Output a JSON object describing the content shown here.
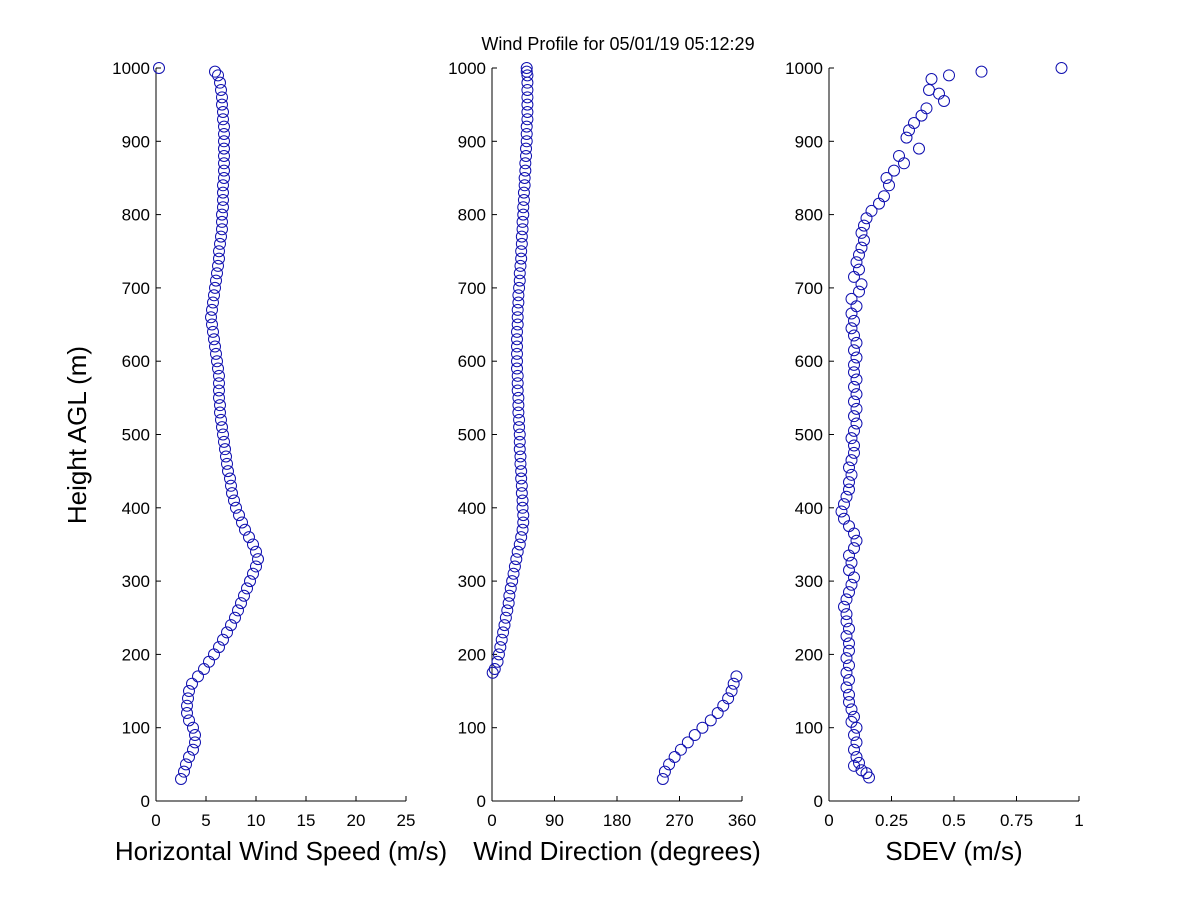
{
  "figure": {
    "title": "Wind Profile for  05/01/19 05:12:29",
    "ylabel": "Height AGL (m)"
  },
  "chart_data": [
    {
      "type": "scatter",
      "xlabel": "Horizontal Wind Speed (m/s)",
      "ylabel": "Height AGL (m)",
      "xlim": [
        0,
        25
      ],
      "ylim": [
        0,
        1000
      ],
      "xticks": [
        0,
        5,
        10,
        15,
        20,
        25
      ],
      "yticks": [
        0,
        100,
        200,
        300,
        400,
        500,
        600,
        700,
        800,
        900,
        1000
      ],
      "marker_color": "#1010b0",
      "grid": false,
      "points": [
        [
          0.3,
          1000
        ],
        [
          5.9,
          995
        ],
        [
          6.2,
          990
        ],
        [
          6.4,
          980
        ],
        [
          6.5,
          970
        ],
        [
          6.6,
          960
        ],
        [
          6.6,
          950
        ],
        [
          6.7,
          940
        ],
        [
          6.7,
          930
        ],
        [
          6.8,
          920
        ],
        [
          6.8,
          910
        ],
        [
          6.8,
          900
        ],
        [
          6.8,
          890
        ],
        [
          6.8,
          880
        ],
        [
          6.8,
          870
        ],
        [
          6.8,
          860
        ],
        [
          6.8,
          850
        ],
        [
          6.7,
          840
        ],
        [
          6.7,
          830
        ],
        [
          6.7,
          820
        ],
        [
          6.7,
          810
        ],
        [
          6.6,
          800
        ],
        [
          6.6,
          790
        ],
        [
          6.6,
          780
        ],
        [
          6.5,
          770
        ],
        [
          6.4,
          760
        ],
        [
          6.3,
          750
        ],
        [
          6.3,
          740
        ],
        [
          6.2,
          730
        ],
        [
          6.1,
          720
        ],
        [
          6.0,
          710
        ],
        [
          5.9,
          700
        ],
        [
          5.8,
          690
        ],
        [
          5.7,
          680
        ],
        [
          5.6,
          670
        ],
        [
          5.5,
          660
        ],
        [
          5.6,
          650
        ],
        [
          5.7,
          640
        ],
        [
          5.8,
          630
        ],
        [
          5.9,
          620
        ],
        [
          6.0,
          610
        ],
        [
          6.1,
          600
        ],
        [
          6.2,
          590
        ],
        [
          6.3,
          580
        ],
        [
          6.3,
          570
        ],
        [
          6.3,
          560
        ],
        [
          6.3,
          550
        ],
        [
          6.4,
          540
        ],
        [
          6.4,
          530
        ],
        [
          6.5,
          520
        ],
        [
          6.6,
          510
        ],
        [
          6.7,
          500
        ],
        [
          6.8,
          490
        ],
        [
          6.9,
          480
        ],
        [
          7.0,
          470
        ],
        [
          7.1,
          460
        ],
        [
          7.2,
          450
        ],
        [
          7.4,
          440
        ],
        [
          7.5,
          430
        ],
        [
          7.6,
          420
        ],
        [
          7.8,
          410
        ],
        [
          8.0,
          400
        ],
        [
          8.3,
          390
        ],
        [
          8.6,
          380
        ],
        [
          8.9,
          370
        ],
        [
          9.3,
          360
        ],
        [
          9.7,
          350
        ],
        [
          10.0,
          340
        ],
        [
          10.2,
          330
        ],
        [
          10.0,
          320
        ],
        [
          9.7,
          310
        ],
        [
          9.4,
          300
        ],
        [
          9.1,
          290
        ],
        [
          8.8,
          280
        ],
        [
          8.5,
          270
        ],
        [
          8.2,
          260
        ],
        [
          7.9,
          250
        ],
        [
          7.5,
          240
        ],
        [
          7.1,
          230
        ],
        [
          6.7,
          220
        ],
        [
          6.3,
          210
        ],
        [
          5.8,
          200
        ],
        [
          5.3,
          190
        ],
        [
          4.8,
          180
        ],
        [
          4.2,
          170
        ],
        [
          3.6,
          160
        ],
        [
          3.3,
          150
        ],
        [
          3.2,
          140
        ],
        [
          3.1,
          130
        ],
        [
          3.1,
          120
        ],
        [
          3.3,
          110
        ],
        [
          3.7,
          100
        ],
        [
          3.9,
          90
        ],
        [
          3.9,
          80
        ],
        [
          3.7,
          70
        ],
        [
          3.3,
          60
        ],
        [
          3.0,
          50
        ],
        [
          2.8,
          40
        ],
        [
          2.5,
          30
        ]
      ]
    },
    {
      "type": "scatter",
      "xlabel": "Wind Direction (degrees)",
      "xlim": [
        0,
        360
      ],
      "ylim": [
        0,
        1000
      ],
      "xticks": [
        0,
        90,
        180,
        270,
        360
      ],
      "yticks": [
        0,
        100,
        200,
        300,
        400,
        500,
        600,
        700,
        800,
        900,
        1000
      ],
      "marker_color": "#1010b0",
      "grid": false,
      "points": [
        [
          50,
          1000
        ],
        [
          50,
          995
        ],
        [
          51,
          990
        ],
        [
          51,
          980
        ],
        [
          51,
          970
        ],
        [
          51,
          960
        ],
        [
          51,
          950
        ],
        [
          51,
          940
        ],
        [
          51,
          930
        ],
        [
          50,
          920
        ],
        [
          50,
          910
        ],
        [
          50,
          900
        ],
        [
          49,
          890
        ],
        [
          49,
          880
        ],
        [
          48,
          870
        ],
        [
          48,
          860
        ],
        [
          47,
          850
        ],
        [
          47,
          840
        ],
        [
          46,
          830
        ],
        [
          46,
          820
        ],
        [
          45,
          810
        ],
        [
          45,
          800
        ],
        [
          44,
          790
        ],
        [
          44,
          780
        ],
        [
          43,
          770
        ],
        [
          43,
          760
        ],
        [
          42,
          750
        ],
        [
          42,
          740
        ],
        [
          41,
          730
        ],
        [
          40,
          720
        ],
        [
          40,
          710
        ],
        [
          39,
          700
        ],
        [
          38,
          690
        ],
        [
          38,
          680
        ],
        [
          37,
          670
        ],
        [
          37,
          660
        ],
        [
          37,
          650
        ],
        [
          36,
          640
        ],
        [
          36,
          630
        ],
        [
          36,
          620
        ],
        [
          36,
          610
        ],
        [
          36,
          600
        ],
        [
          36,
          590
        ],
        [
          37,
          580
        ],
        [
          37,
          570
        ],
        [
          37,
          560
        ],
        [
          38,
          550
        ],
        [
          38,
          540
        ],
        [
          38,
          530
        ],
        [
          39,
          520
        ],
        [
          39,
          510
        ],
        [
          40,
          500
        ],
        [
          40,
          490
        ],
        [
          40,
          480
        ],
        [
          41,
          470
        ],
        [
          41,
          460
        ],
        [
          42,
          450
        ],
        [
          42,
          440
        ],
        [
          43,
          430
        ],
        [
          43,
          420
        ],
        [
          44,
          410
        ],
        [
          44,
          400
        ],
        [
          45,
          390
        ],
        [
          45,
          380
        ],
        [
          44,
          370
        ],
        [
          42,
          360
        ],
        [
          40,
          350
        ],
        [
          37,
          340
        ],
        [
          35,
          330
        ],
        [
          33,
          320
        ],
        [
          31,
          310
        ],
        [
          29,
          300
        ],
        [
          27,
          290
        ],
        [
          25,
          280
        ],
        [
          24,
          270
        ],
        [
          22,
          260
        ],
        [
          20,
          250
        ],
        [
          18,
          240
        ],
        [
          16,
          230
        ],
        [
          14,
          220
        ],
        [
          12,
          210
        ],
        [
          10,
          200
        ],
        [
          8,
          190
        ],
        [
          4,
          180
        ],
        [
          1,
          175
        ],
        [
          352,
          170
        ],
        [
          348,
          160
        ],
        [
          345,
          150
        ],
        [
          340,
          140
        ],
        [
          333,
          130
        ],
        [
          325,
          120
        ],
        [
          315,
          110
        ],
        [
          303,
          100
        ],
        [
          292,
          90
        ],
        [
          282,
          80
        ],
        [
          272,
          70
        ],
        [
          263,
          60
        ],
        [
          255,
          50
        ],
        [
          249,
          40
        ],
        [
          246,
          30
        ]
      ]
    },
    {
      "type": "scatter",
      "xlabel": "SDEV  (m/s)",
      "xlim": [
        0,
        1
      ],
      "ylim": [
        0,
        1000
      ],
      "xticks": [
        0,
        0.25,
        0.5,
        0.75,
        1
      ],
      "xticklabels": [
        "0",
        "0.25",
        "0.5",
        "0.75",
        "1"
      ],
      "yticks": [
        0,
        100,
        200,
        300,
        400,
        500,
        600,
        700,
        800,
        900,
        1000
      ],
      "marker_color": "#1010b0",
      "grid": false,
      "points": [
        [
          0.93,
          1000
        ],
        [
          0.61,
          995
        ],
        [
          0.48,
          990
        ],
        [
          0.41,
          985
        ],
        [
          0.4,
          970
        ],
        [
          0.44,
          965
        ],
        [
          0.46,
          955
        ],
        [
          0.39,
          945
        ],
        [
          0.37,
          935
        ],
        [
          0.34,
          925
        ],
        [
          0.32,
          915
        ],
        [
          0.31,
          905
        ],
        [
          0.36,
          890
        ],
        [
          0.28,
          880
        ],
        [
          0.3,
          870
        ],
        [
          0.26,
          860
        ],
        [
          0.23,
          850
        ],
        [
          0.24,
          840
        ],
        [
          0.22,
          825
        ],
        [
          0.2,
          815
        ],
        [
          0.17,
          805
        ],
        [
          0.15,
          795
        ],
        [
          0.14,
          785
        ],
        [
          0.13,
          775
        ],
        [
          0.14,
          765
        ],
        [
          0.13,
          755
        ],
        [
          0.12,
          745
        ],
        [
          0.11,
          735
        ],
        [
          0.12,
          725
        ],
        [
          0.1,
          715
        ],
        [
          0.13,
          705
        ],
        [
          0.12,
          695
        ],
        [
          0.09,
          685
        ],
        [
          0.11,
          675
        ],
        [
          0.09,
          665
        ],
        [
          0.1,
          655
        ],
        [
          0.09,
          645
        ],
        [
          0.1,
          635
        ],
        [
          0.11,
          625
        ],
        [
          0.1,
          615
        ],
        [
          0.11,
          605
        ],
        [
          0.1,
          595
        ],
        [
          0.1,
          585
        ],
        [
          0.11,
          575
        ],
        [
          0.1,
          565
        ],
        [
          0.11,
          555
        ],
        [
          0.1,
          545
        ],
        [
          0.11,
          535
        ],
        [
          0.1,
          525
        ],
        [
          0.11,
          515
        ],
        [
          0.1,
          505
        ],
        [
          0.09,
          495
        ],
        [
          0.1,
          485
        ],
        [
          0.1,
          475
        ],
        [
          0.09,
          465
        ],
        [
          0.08,
          455
        ],
        [
          0.09,
          445
        ],
        [
          0.08,
          435
        ],
        [
          0.08,
          425
        ],
        [
          0.07,
          415
        ],
        [
          0.06,
          405
        ],
        [
          0.05,
          395
        ],
        [
          0.06,
          385
        ],
        [
          0.08,
          375
        ],
        [
          0.1,
          365
        ],
        [
          0.11,
          355
        ],
        [
          0.1,
          345
        ],
        [
          0.08,
          335
        ],
        [
          0.09,
          325
        ],
        [
          0.08,
          315
        ],
        [
          0.1,
          305
        ],
        [
          0.09,
          295
        ],
        [
          0.08,
          285
        ],
        [
          0.07,
          275
        ],
        [
          0.06,
          265
        ],
        [
          0.07,
          255
        ],
        [
          0.07,
          245
        ],
        [
          0.08,
          235
        ],
        [
          0.07,
          225
        ],
        [
          0.08,
          215
        ],
        [
          0.08,
          205
        ],
        [
          0.07,
          195
        ],
        [
          0.08,
          185
        ],
        [
          0.07,
          175
        ],
        [
          0.08,
          165
        ],
        [
          0.07,
          155
        ],
        [
          0.08,
          145
        ],
        [
          0.08,
          135
        ],
        [
          0.09,
          125
        ],
        [
          0.1,
          115
        ],
        [
          0.09,
          108
        ],
        [
          0.11,
          100
        ],
        [
          0.1,
          90
        ],
        [
          0.11,
          80
        ],
        [
          0.1,
          70
        ],
        [
          0.11,
          60
        ],
        [
          0.12,
          52
        ],
        [
          0.1,
          48
        ],
        [
          0.13,
          42
        ],
        [
          0.15,
          38
        ],
        [
          0.16,
          32
        ]
      ]
    }
  ]
}
